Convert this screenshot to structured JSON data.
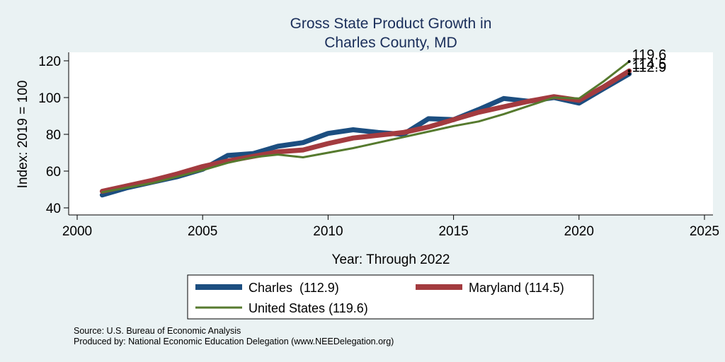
{
  "chart_data": {
    "type": "line",
    "title": [
      "Gross State Product Growth in",
      "Charles County, MD"
    ],
    "xlabel": "Year: Through 2022",
    "ylabel": "Index: 2019 = 100",
    "xlim": [
      2000,
      2025
    ],
    "ylim": [
      40,
      120
    ],
    "x_ticks": [
      "2000",
      "2005",
      "2010",
      "2015",
      "2020",
      "2025"
    ],
    "y_ticks": [
      "40",
      "60",
      "80",
      "100",
      "120"
    ],
    "x": [
      2001,
      2002,
      2003,
      2004,
      2005,
      2006,
      2007,
      2008,
      2009,
      2010,
      2011,
      2012,
      2013,
      2014,
      2015,
      2016,
      2017,
      2018,
      2019,
      2020,
      2021,
      2022
    ],
    "series": [
      {
        "name": "Charles",
        "legend_label": "Charles  (112.9)",
        "color": "#1c4e80",
        "values": [
          47,
          51,
          54,
          57,
          61,
          68.5,
          69.5,
          73.5,
          75.5,
          80.5,
          82.5,
          81,
          80,
          88.5,
          88,
          93.5,
          99.5,
          98,
          100,
          97,
          105,
          112.9
        ],
        "end_label": "112.9"
      },
      {
        "name": "Maryland",
        "legend_label": "Maryland (114.5)",
        "color": "#a33b3f",
        "values": [
          49,
          52,
          55,
          58.5,
          62.5,
          65.5,
          68,
          70.5,
          71.5,
          75,
          78,
          79.5,
          81,
          84,
          88,
          92,
          95,
          98,
          100.5,
          98.5,
          106,
          114.5
        ],
        "end_label": "114.5"
      },
      {
        "name": "United States",
        "legend_label": "United States (119.6)",
        "color": "#567a2e",
        "values": [
          48.5,
          51,
          53.5,
          57,
          60.5,
          64.5,
          67.5,
          69,
          67.5,
          70,
          72.5,
          75.5,
          78.5,
          81.5,
          84.5,
          87,
          91,
          95.5,
          100,
          99.5,
          109,
          119.6
        ],
        "end_label": "119.6"
      }
    ],
    "legend_position": "bottom"
  },
  "source_note": "Source: U.S. Bureau of Economic Analysis",
  "produced_note": "Produced by: National Economic Education Delegation (www.NEEDelegation.org)"
}
